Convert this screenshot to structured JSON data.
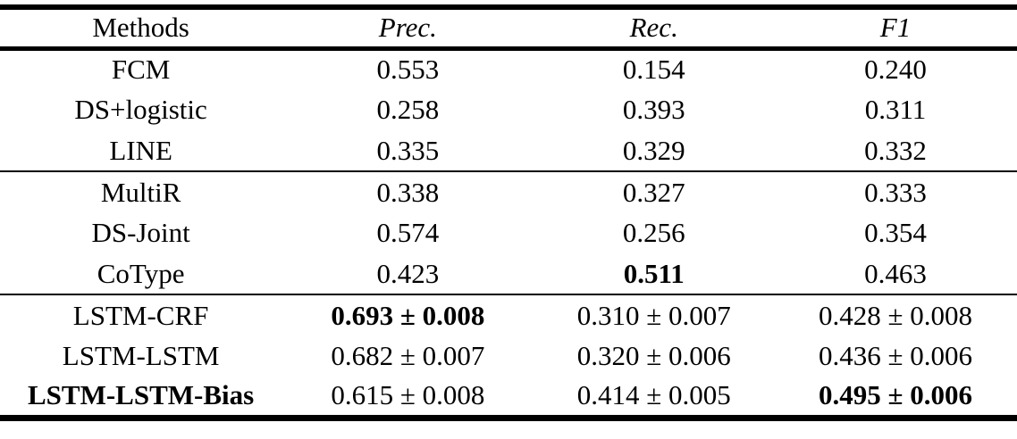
{
  "table": {
    "columns": [
      {
        "label": "Methods"
      },
      {
        "label": "Prec."
      },
      {
        "label": "Rec."
      },
      {
        "label": "F1"
      }
    ],
    "groups": [
      {
        "rows": [
          {
            "method": {
              "text": "FCM"
            },
            "prec": {
              "text": "0.553"
            },
            "rec": {
              "text": "0.154"
            },
            "f1": {
              "text": "0.240"
            }
          },
          {
            "method": {
              "text": "DS+logistic"
            },
            "prec": {
              "text": "0.258"
            },
            "rec": {
              "text": "0.393"
            },
            "f1": {
              "text": "0.311"
            }
          },
          {
            "method": {
              "text": "LINE"
            },
            "prec": {
              "text": "0.335"
            },
            "rec": {
              "text": "0.329"
            },
            "f1": {
              "text": "0.332"
            }
          }
        ]
      },
      {
        "rows": [
          {
            "method": {
              "text": "MultiR"
            },
            "prec": {
              "text": "0.338"
            },
            "rec": {
              "text": "0.327"
            },
            "f1": {
              "text": "0.333"
            }
          },
          {
            "method": {
              "text": "DS-Joint"
            },
            "prec": {
              "text": "0.574"
            },
            "rec": {
              "text": "0.256"
            },
            "f1": {
              "text": "0.354"
            }
          },
          {
            "method": {
              "text": "CoType"
            },
            "prec": {
              "text": "0.423"
            },
            "rec": {
              "text": "0.511",
              "style": "bold"
            },
            "f1": {
              "text": "0.463"
            }
          }
        ]
      },
      {
        "rows": [
          {
            "method": {
              "text": "LSTM-CRF"
            },
            "prec": {
              "text": "0.693 ± 0.008",
              "style": "bold"
            },
            "rec": {
              "text": "0.310 ± 0.007"
            },
            "f1": {
              "text": "0.428 ± 0.008"
            }
          },
          {
            "method": {
              "text": "LSTM-LSTM"
            },
            "prec": {
              "text": "0.682 ± 0.007"
            },
            "rec": {
              "text": "0.320 ± 0.006"
            },
            "f1": {
              "text": "0.436 ± 0.006"
            }
          },
          {
            "method": {
              "text": "LSTM-LSTM-Bias",
              "style": "bold"
            },
            "prec": {
              "text": "0.615 ± 0.008"
            },
            "rec": {
              "text": "0.414 ± 0.005"
            },
            "f1": {
              "text": "0.495 ± 0.006",
              "style": "bold"
            }
          }
        ]
      }
    ]
  }
}
